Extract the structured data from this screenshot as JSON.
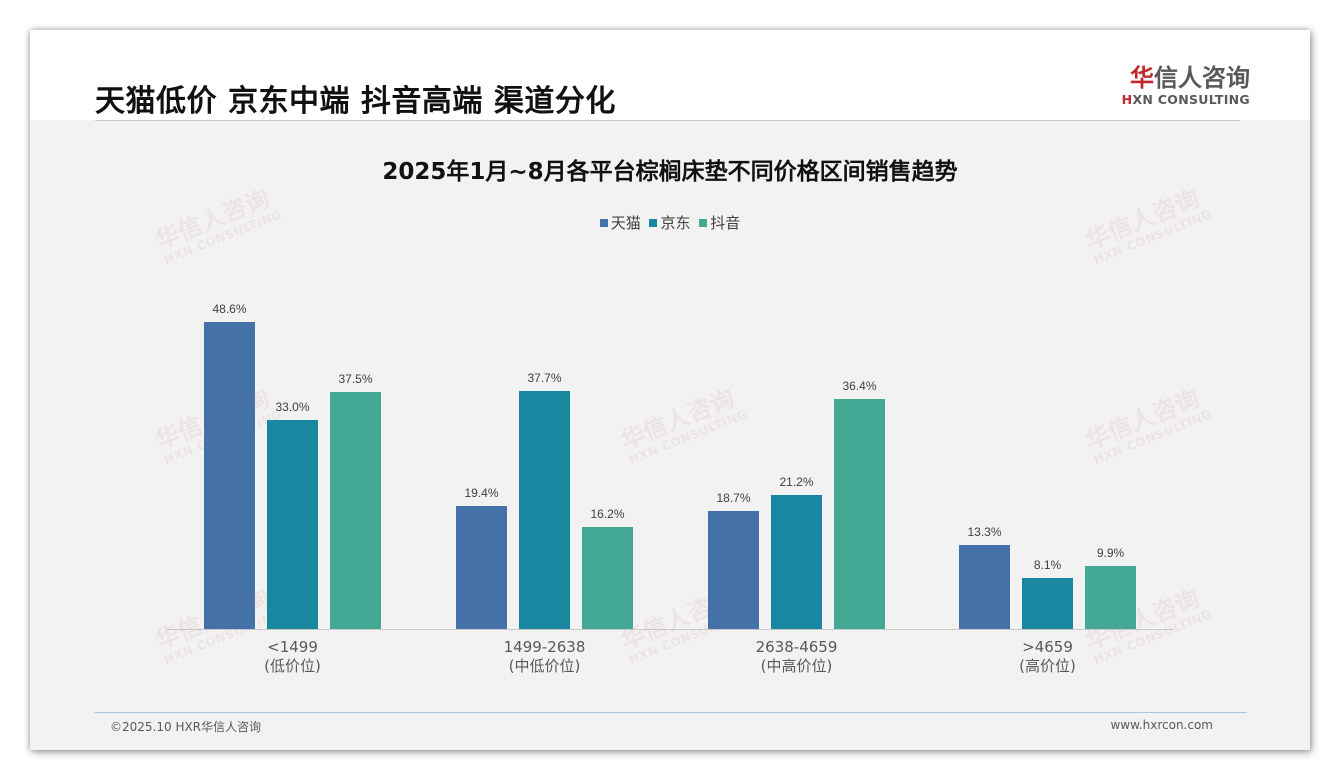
{
  "page": {
    "title": "天猫低价 京东中端 抖音高端 渠道分化",
    "logo": {
      "cn_accent": "华",
      "cn_rest": "信人咨询",
      "en_accent": "H",
      "en_rest": "XN CONSULTING"
    },
    "footer": {
      "copyright": "©2025.10 HXR华信人咨询",
      "website": "www.hxrcon.com"
    },
    "watermark": {
      "cn": "华信人咨询",
      "en": "HXN CONSULTING"
    }
  },
  "colors": {
    "tmall": "#4472a8",
    "jd": "#1a87a0",
    "douyin": "#43a894",
    "brand_red": "#c0282d"
  },
  "chart_data": {
    "type": "bar",
    "title": "2025年1月~8月各平台棕榈床垫不同价格区间销售趋势",
    "xlabel": "",
    "ylabel": "",
    "ylim": [
      0,
      66
    ],
    "grid": false,
    "legend_position": "top",
    "categories": [
      {
        "range": "<1499",
        "tier": "(低价位)"
      },
      {
        "range": "1499-2638",
        "tier": "(中低价位)"
      },
      {
        "range": "2638-4659",
        "tier": "(中高价位)"
      },
      {
        "range": ">4659",
        "tier": "(高价位)"
      }
    ],
    "series": [
      {
        "name": "天猫",
        "color": "#4472a8",
        "values": [
          48.6,
          19.4,
          18.7,
          13.3
        ],
        "labels": [
          "48.6%",
          "19.4%",
          "18.7%",
          "13.3%"
        ]
      },
      {
        "name": "京东",
        "color": "#1a87a0",
        "values": [
          33.0,
          37.7,
          21.2,
          8.1
        ],
        "labels": [
          "33.0%",
          "37.7%",
          "21.2%",
          "8.1%"
        ]
      },
      {
        "name": "抖音",
        "color": "#43a894",
        "values": [
          37.5,
          16.2,
          36.4,
          9.9
        ],
        "labels": [
          "37.5%",
          "16.2%",
          "36.4%",
          "9.9%"
        ]
      }
    ]
  }
}
